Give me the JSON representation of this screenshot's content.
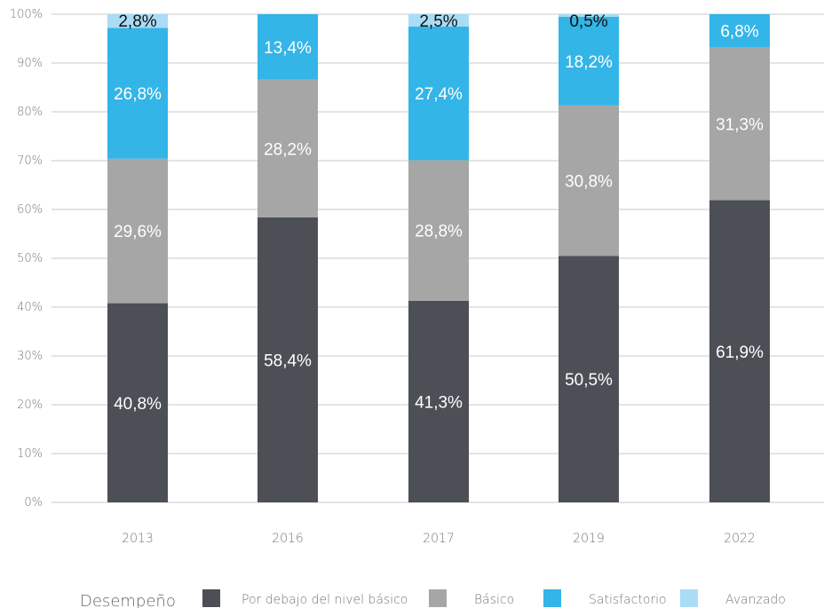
{
  "chart_data": {
    "type": "bar",
    "stacked": true,
    "categories": [
      "2013",
      "2016",
      "2017",
      "2019",
      "2022"
    ],
    "series": [
      {
        "name": "Por debajo del nivel básico",
        "color": "#4d4f57",
        "label_color": "#ffffff",
        "values": [
          40.8,
          58.4,
          41.3,
          50.5,
          61.9
        ],
        "labels": [
          "40,8%",
          "58,4%",
          "41,3%",
          "50,5%",
          "61,9%"
        ]
      },
      {
        "name": "Básico",
        "color": "#a6a6a6",
        "label_color": "#ffffff",
        "values": [
          29.6,
          28.2,
          28.8,
          30.8,
          31.3
        ],
        "labels": [
          "29,6%",
          "28,2%",
          "28,8%",
          "30,8%",
          "31,3%"
        ]
      },
      {
        "name": "Satisfactorio",
        "color": "#33b5e8",
        "label_color": "#ffffff",
        "values": [
          26.8,
          13.4,
          27.4,
          18.2,
          6.8
        ],
        "labels": [
          "26,8%",
          "13,4%",
          "27,4%",
          "18,2%",
          "6,8%"
        ]
      },
      {
        "name": "Avanzado",
        "color": "#aadcf5",
        "label_color": "#111111",
        "values": [
          2.8,
          0,
          2.5,
          0.5,
          0
        ],
        "labels": [
          "2,8%",
          "",
          "2,5%",
          "0,5%",
          ""
        ]
      }
    ],
    "y_ticks": [
      "0%",
      "10%",
      "20%",
      "30%",
      "40%",
      "50%",
      "60%",
      "70%",
      "80%",
      "90%",
      "100%"
    ],
    "ylim": [
      0,
      100
    ],
    "grid": true,
    "legend": {
      "title": "Desempeño",
      "placement": "bottom"
    }
  }
}
